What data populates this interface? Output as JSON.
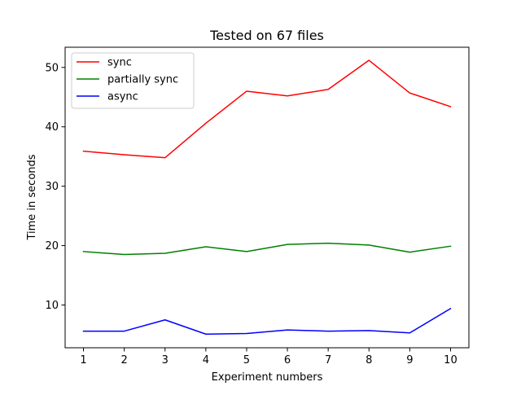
{
  "chart_data": {
    "type": "line",
    "title": "Tested on 67 files",
    "xlabel": "Experiment numbers",
    "ylabel": "Time in seconds",
    "x": [
      1,
      2,
      3,
      4,
      5,
      6,
      7,
      8,
      9,
      10
    ],
    "xticks": [
      "1",
      "2",
      "3",
      "4",
      "5",
      "6",
      "7",
      "8",
      "9",
      "10"
    ],
    "yticks": [
      10,
      20,
      30,
      40,
      50
    ],
    "xlim": [
      0.55,
      10.45
    ],
    "ylim": [
      2.8,
      53.4
    ],
    "grid": false,
    "legend_position": "top-left",
    "series": [
      {
        "name": "sync",
        "color": "#ff0000",
        "values": [
          35.9,
          35.3,
          34.8,
          40.6,
          46.0,
          45.2,
          46.3,
          51.2,
          45.7,
          43.4
        ]
      },
      {
        "name": "partially sync",
        "color": "#008000",
        "values": [
          19.0,
          18.5,
          18.7,
          19.8,
          19.0,
          20.2,
          20.4,
          20.1,
          18.9,
          19.9
        ]
      },
      {
        "name": "async",
        "color": "#0000ff",
        "values": [
          5.6,
          5.6,
          7.5,
          5.1,
          5.2,
          5.8,
          5.6,
          5.7,
          5.3,
          9.4
        ]
      }
    ]
  }
}
